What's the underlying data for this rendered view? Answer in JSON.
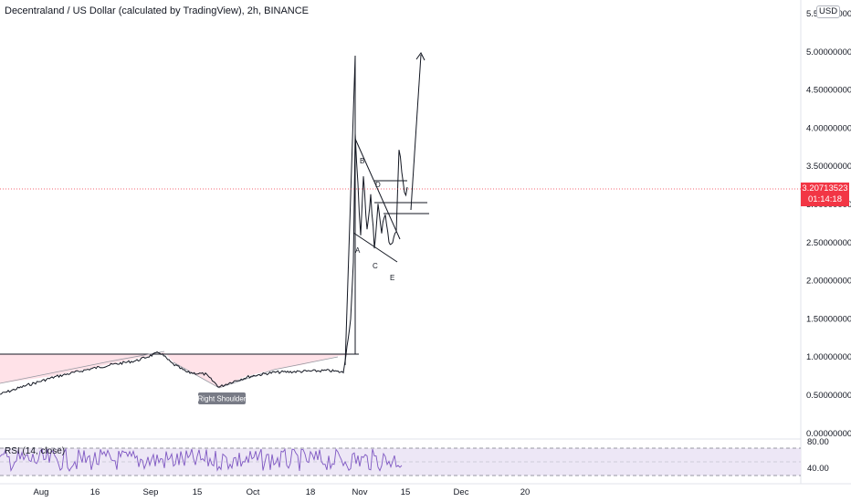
{
  "header": {
    "title": "Decentraland / US Dollar (calculated by TradingView), 2h, BINANCE",
    "currency": "USD"
  },
  "price_axis": {
    "ticks": [
      "5.50000000",
      "5.00000000",
      "4.50000000",
      "4.00000000",
      "3.50000000",
      "3.00000000",
      "2.50000000",
      "2.00000000",
      "1.50000000",
      "1.00000000",
      "0.50000000",
      "0.00000000"
    ],
    "current_price": "3.20713523",
    "countdown": "01:14:18"
  },
  "time_axis": {
    "ticks": [
      "Aug",
      "16",
      "Sep",
      "15",
      "Oct",
      "18",
      "Nov",
      "15",
      "Dec",
      "20"
    ]
  },
  "annotations": {
    "right_shoulder": "Right Shoulder",
    "waves": [
      "A",
      "B",
      "C",
      "D",
      "E"
    ]
  },
  "rsi": {
    "label": "RSI (14, close)",
    "ticks": [
      "80.00",
      "40.00"
    ]
  },
  "colors": {
    "candles": "#131722",
    "rsi_line": "#7e57c2",
    "rsi_band": "#ede7f6",
    "price_line": "#f23645",
    "shoulder_fill": "#ffdde4"
  },
  "chart_data": {
    "type": "line",
    "title": "Decentraland / US Dollar (calculated by TradingView), 2h, BINANCE",
    "x": [
      "Aug",
      "16",
      "Sep",
      "15",
      "Oct",
      "18",
      "Nov",
      "15"
    ],
    "series": [
      {
        "values": [
          0.72,
          0.88,
          1.02,
          0.7,
          0.82,
          0.9,
          3.0,
          3.2
        ]
      }
    ],
    "ylim": [
      0,
      5.5
    ]
  }
}
